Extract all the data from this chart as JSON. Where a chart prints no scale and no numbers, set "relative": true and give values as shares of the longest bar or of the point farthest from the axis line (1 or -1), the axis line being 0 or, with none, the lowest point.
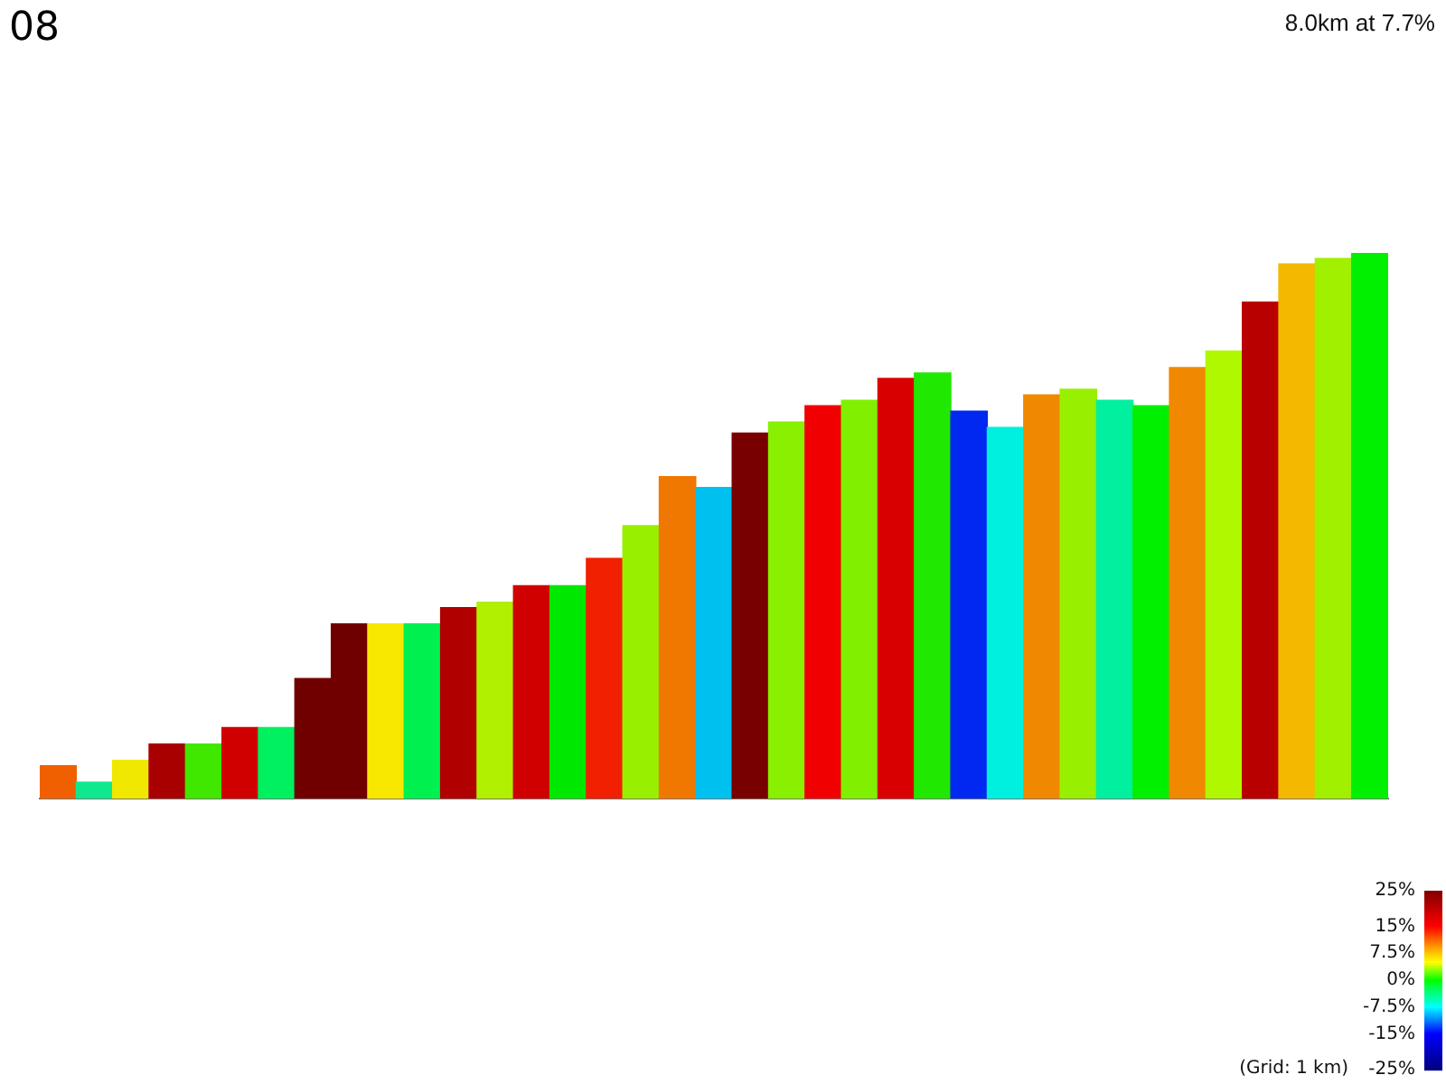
{
  "chart_data": {
    "type": "bar",
    "title": "08",
    "subtitle": "8.0km at 7.7%",
    "annotations": [
      "(Grid: 1 km)"
    ],
    "relative": true,
    "categories": [
      null,
      null,
      null,
      null,
      null,
      null,
      null,
      null,
      null,
      null,
      null,
      null,
      null,
      null,
      null,
      null,
      null,
      null,
      null,
      null,
      null,
      null,
      null,
      null,
      null,
      null,
      null,
      null,
      null,
      null,
      null,
      null,
      null,
      null,
      null,
      null,
      null
    ],
    "values": [
      0.06,
      0.03,
      0.07,
      0.1,
      0.1,
      0.13,
      0.13,
      0.22,
      0.32,
      0.32,
      0.32,
      0.35,
      0.36,
      0.39,
      0.39,
      0.44,
      0.5,
      0.59,
      0.57,
      0.67,
      0.69,
      0.72,
      0.73,
      0.77,
      0.78,
      0.71,
      0.68,
      0.74,
      0.75,
      0.73,
      0.72,
      0.79,
      0.82,
      0.91,
      0.98,
      0.99,
      1
    ],
    "colors": [
      "#f06000",
      "#10e890",
      "#f0e800",
      "#a80000",
      "#40e800",
      "#d00000",
      "#00f060",
      "#700000",
      "#700000",
      "#f8e800",
      "#00f050",
      "#b00000",
      "#b0f000",
      "#d00000",
      "#00e800",
      "#f02000",
      "#98f000",
      "#f07800",
      "#00c0f0",
      "#780000",
      "#88f000",
      "#f00000",
      "#80f000",
      "#d80000",
      "#20e800",
      "#0028f0",
      "#00f0e0",
      "#f08800",
      "#98f000",
      "#00f0a0",
      "#00f000",
      "#f08800",
      "#b0f800",
      "#b80000",
      "#f4b800",
      "#a0f000",
      "#00f000"
    ],
    "clim": [
      -25,
      25
    ],
    "cticks": [
      {
        "value": 25,
        "label": "25%"
      },
      {
        "value": 15,
        "label": "15%"
      },
      {
        "value": 7.5,
        "label": "7.5%"
      },
      {
        "value": 0,
        "label": "0%"
      },
      {
        "value": -7.5,
        "label": "-7.5%"
      },
      {
        "value": -15,
        "label": "-15%"
      },
      {
        "value": -25,
        "label": "-25%"
      }
    ]
  }
}
